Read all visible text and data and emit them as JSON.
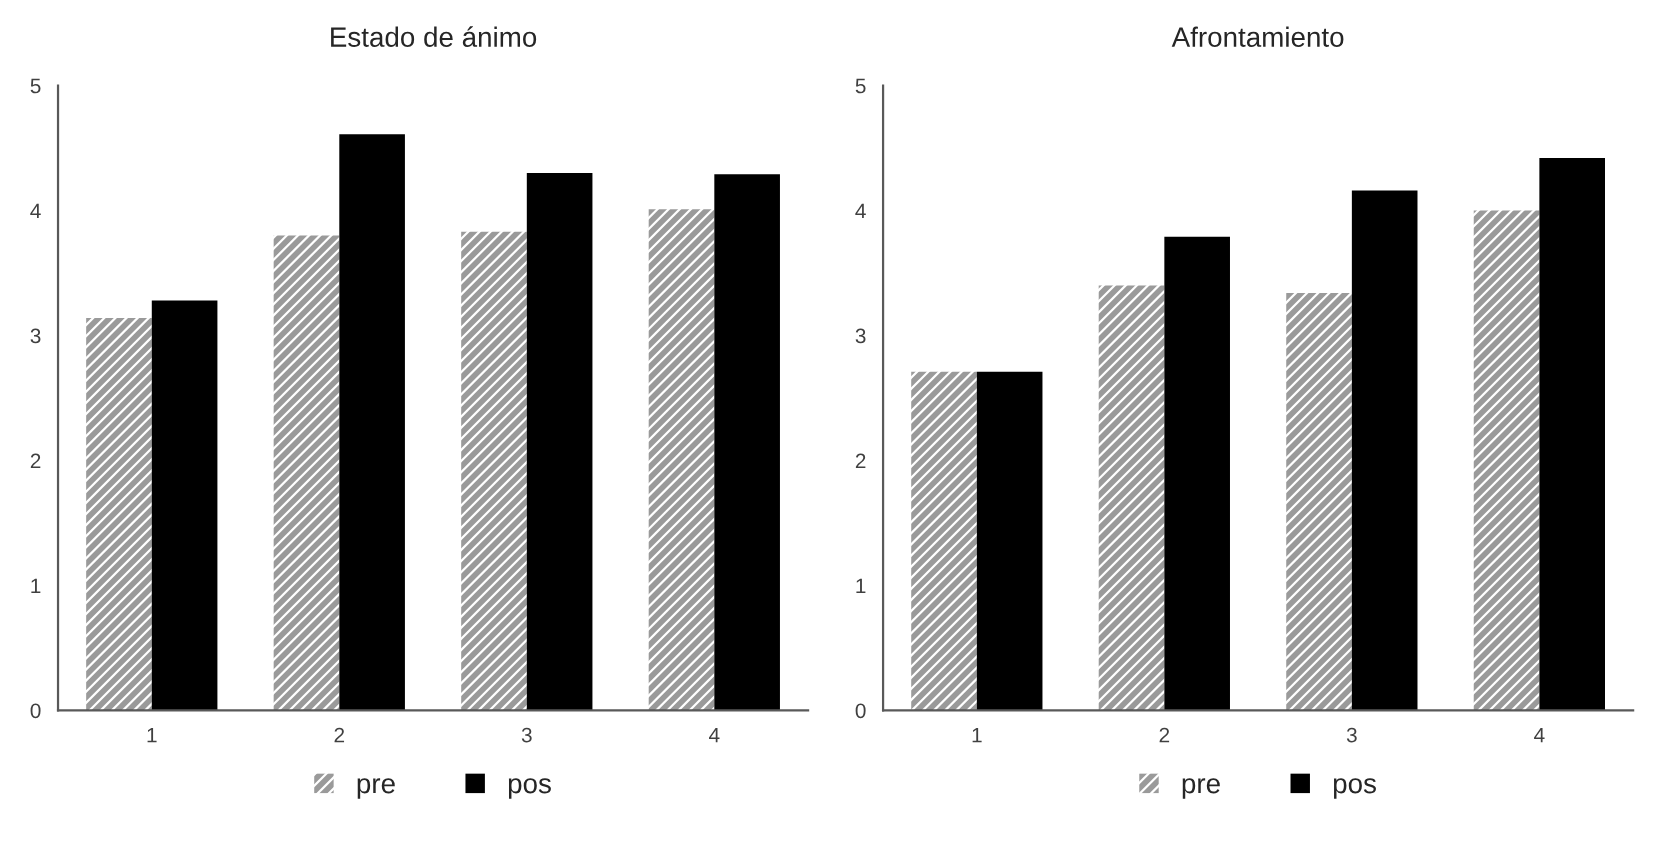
{
  "chart_data": [
    {
      "type": "bar",
      "title": "Estado de ánimo",
      "categories": [
        "1",
        "2",
        "3",
        "4"
      ],
      "ylim": [
        0,
        5
      ],
      "yticks": [
        0,
        1,
        2,
        3,
        4,
        5
      ],
      "grid": false,
      "legend": "bottom",
      "series": [
        {
          "name": "pre",
          "color": "#9a9a9a",
          "values": [
            3.14,
            3.8,
            3.83,
            4.01
          ]
        },
        {
          "name": "pos",
          "color": "#000000",
          "values": [
            3.28,
            4.61,
            4.3,
            4.29
          ]
        }
      ]
    },
    {
      "type": "bar",
      "title": "Afrontamiento",
      "categories": [
        "1",
        "2",
        "3",
        "4"
      ],
      "ylim": [
        0,
        5
      ],
      "yticks": [
        0,
        1,
        2,
        3,
        4,
        5
      ],
      "grid": false,
      "legend": "bottom",
      "series": [
        {
          "name": "pre",
          "color": "#9a9a9a",
          "values": [
            2.71,
            3.4,
            3.34,
            4.0
          ]
        },
        {
          "name": "pos",
          "color": "#000000",
          "values": [
            2.71,
            3.79,
            4.16,
            4.42
          ]
        }
      ]
    }
  ]
}
